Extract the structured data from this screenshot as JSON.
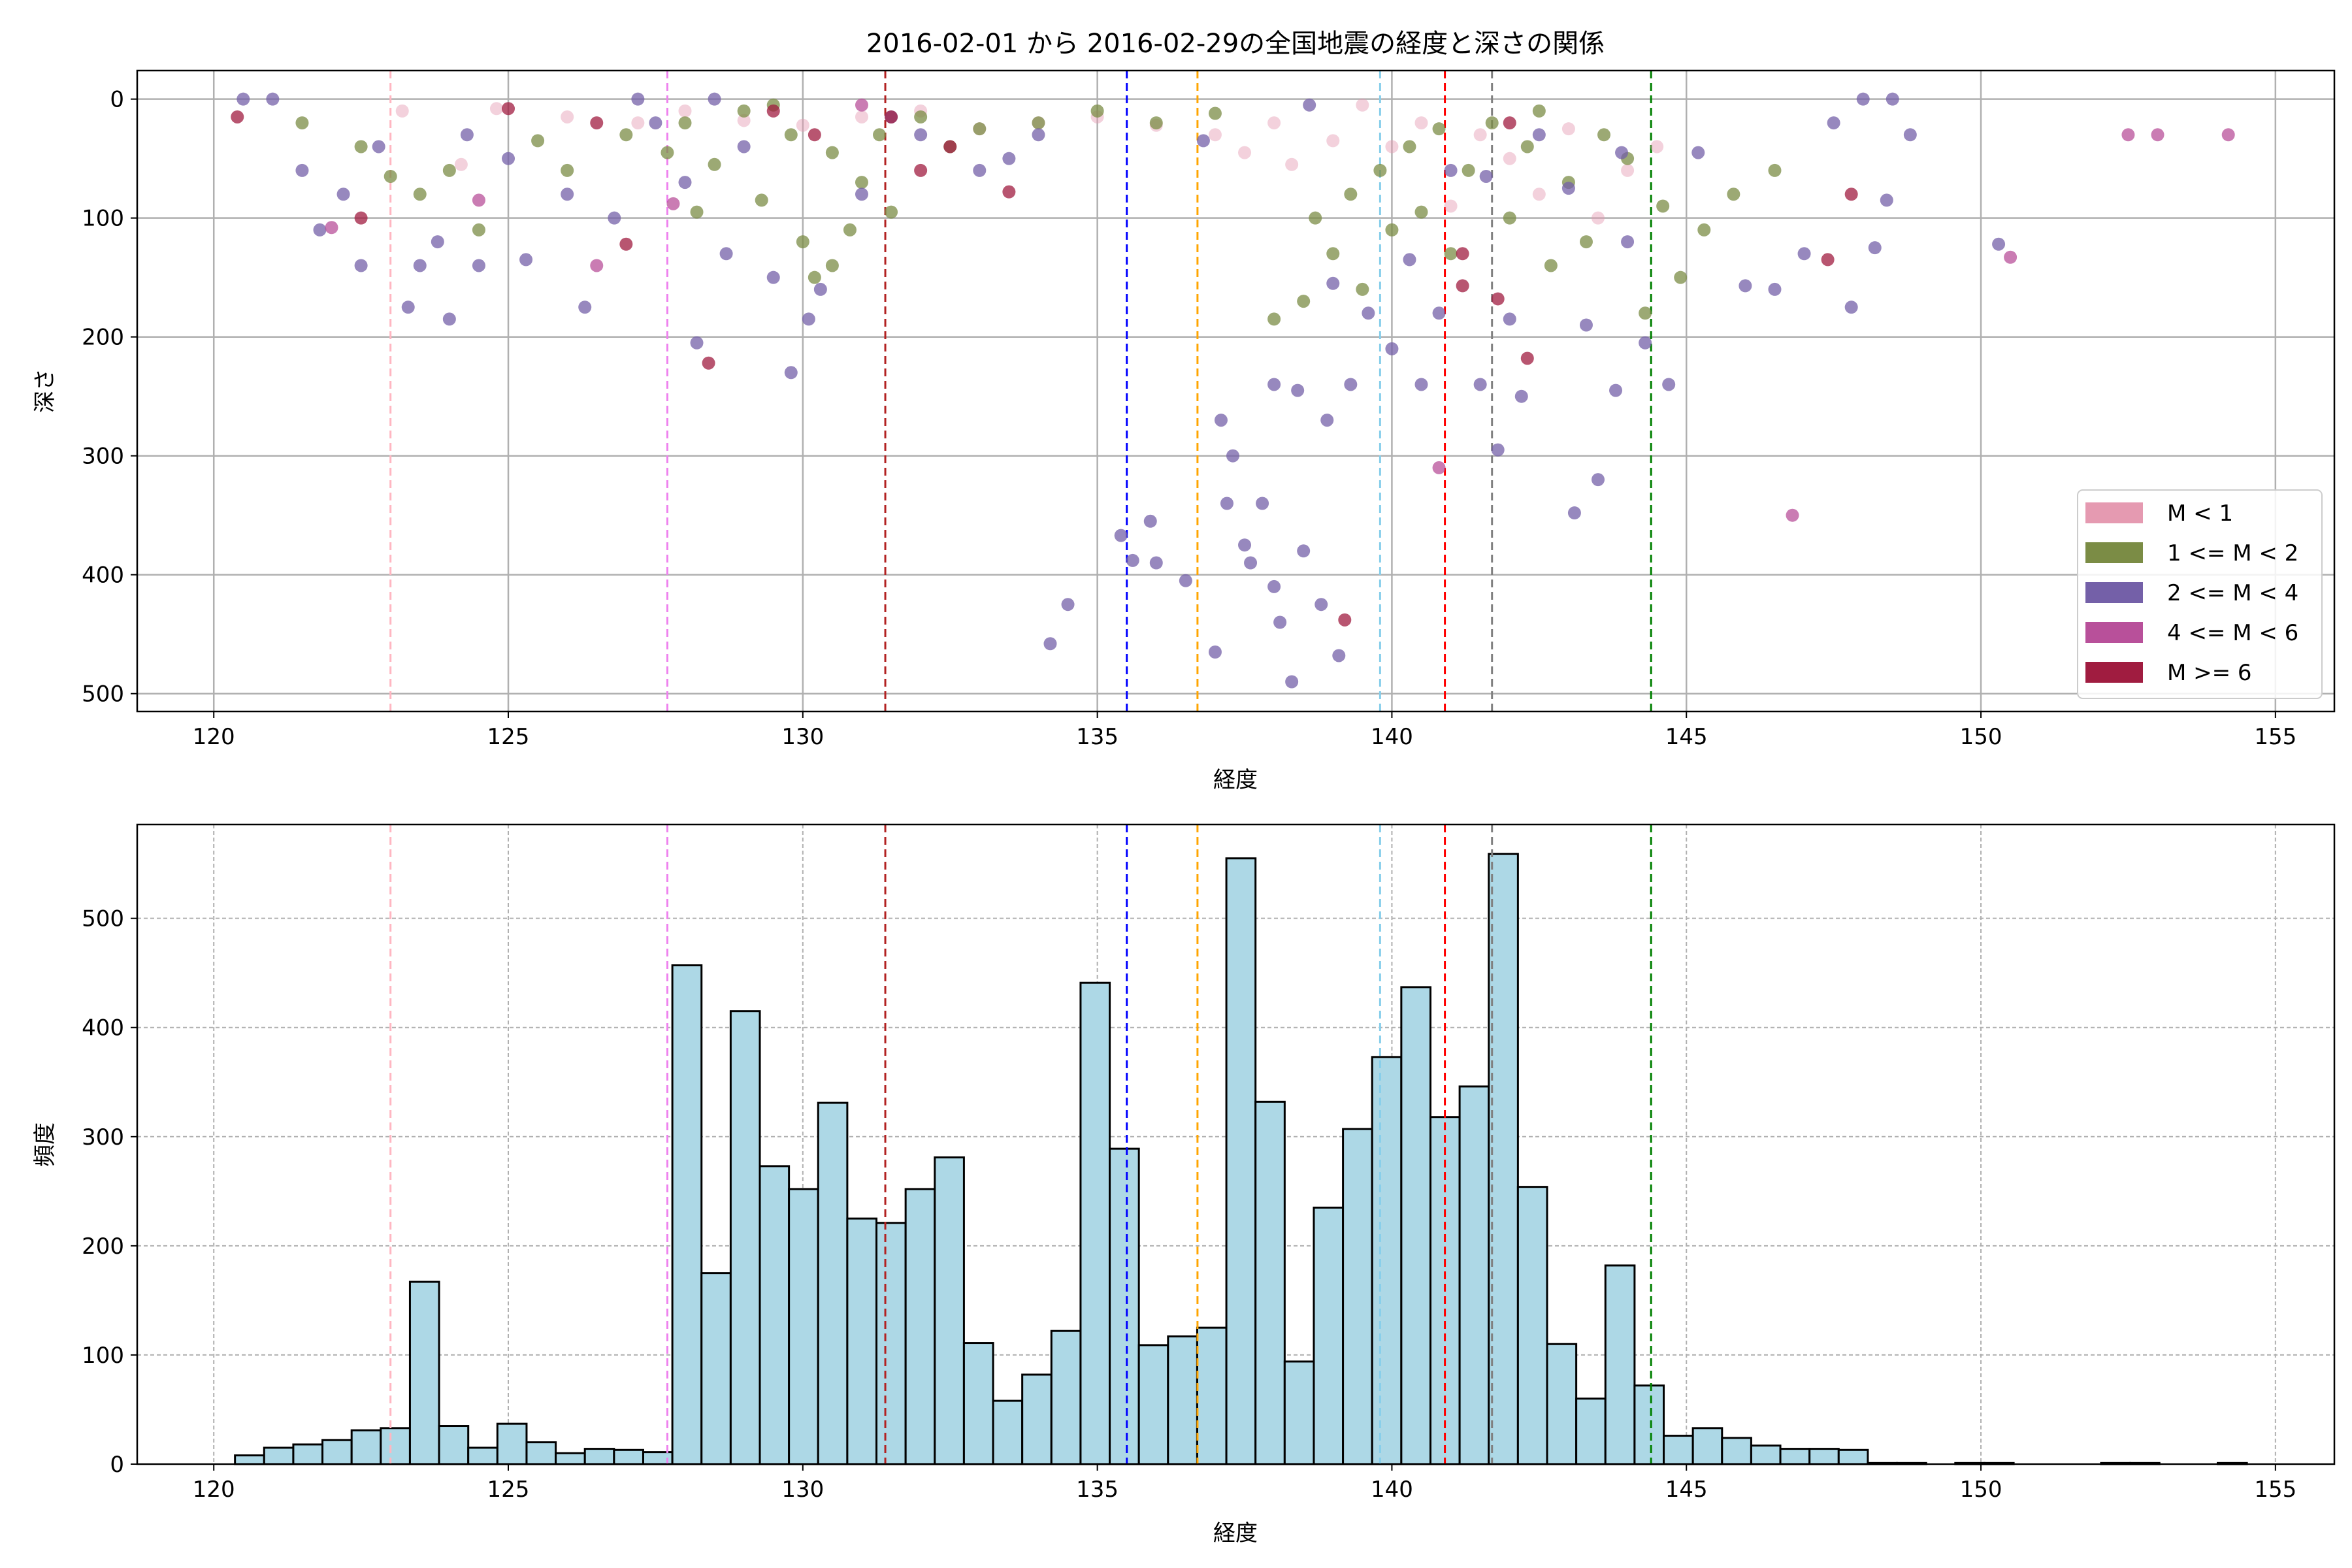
{
  "chart_data": [
    {
      "type": "scatter",
      "title": "2016-02-01 から 2016-02-29の全国地震の経度と深さの関係",
      "xlabel": "経度",
      "ylabel": "深さ",
      "xlim": [
        118.7,
        156.0
      ],
      "ylim": [
        515,
        -24
      ],
      "y_inverted": true,
      "xticks": [
        120,
        125,
        130,
        135,
        140,
        145,
        150,
        155
      ],
      "yticks": [
        0,
        100,
        200,
        300,
        400,
        500
      ],
      "grid": true,
      "legend_position": "lower-right",
      "series": [
        {
          "name": "M < 1",
          "color": "#e59ab1",
          "points": [
            [
              123.2,
              10
            ],
            [
              124.8,
              8
            ],
            [
              126,
              15
            ],
            [
              127.2,
              20
            ],
            [
              128,
              10
            ],
            [
              129,
              18
            ],
            [
              130,
              22
            ],
            [
              131,
              15
            ],
            [
              132,
              10
            ],
            [
              133,
              25
            ],
            [
              134,
              20
            ],
            [
              135,
              15
            ],
            [
              136,
              22
            ],
            [
              137,
              30
            ],
            [
              137.5,
              45
            ],
            [
              138,
              20
            ],
            [
              138.3,
              55
            ],
            [
              139,
              35
            ],
            [
              139.5,
              5
            ],
            [
              140,
              40
            ],
            [
              140.5,
              20
            ],
            [
              141,
              90
            ],
            [
              141.5,
              30
            ],
            [
              142,
              50
            ],
            [
              142.5,
              80
            ],
            [
              143,
              25
            ],
            [
              143.5,
              100
            ],
            [
              144,
              60
            ],
            [
              144.5,
              40
            ],
            [
              124.2,
              55
            ]
          ]
        },
        {
          "name": "1 <= M < 2",
          "color": "#7b8c45",
          "points": [
            [
              121.5,
              20
            ],
            [
              122.5,
              40
            ],
            [
              123,
              65
            ],
            [
              123.5,
              80
            ],
            [
              124,
              60
            ],
            [
              124.5,
              110
            ],
            [
              125.5,
              35
            ],
            [
              126,
              60
            ],
            [
              127,
              30
            ],
            [
              127.7,
              45
            ],
            [
              128,
              20
            ],
            [
              128.5,
              55
            ],
            [
              129,
              10
            ],
            [
              129.3,
              85
            ],
            [
              129.8,
              30
            ],
            [
              130,
              120
            ],
            [
              130.2,
              150
            ],
            [
              130.5,
              140
            ],
            [
              130.8,
              110
            ],
            [
              131,
              70
            ],
            [
              131.5,
              95
            ],
            [
              131.3,
              30
            ],
            [
              132,
              15
            ],
            [
              132.5,
              40
            ],
            [
              133,
              25
            ],
            [
              134,
              20
            ],
            [
              135,
              10
            ],
            [
              136,
              20
            ],
            [
              137,
              12
            ],
            [
              138,
              185
            ],
            [
              138.5,
              170
            ],
            [
              138.7,
              100
            ],
            [
              139,
              130
            ],
            [
              139.3,
              80
            ],
            [
              139.5,
              160
            ],
            [
              139.8,
              60
            ],
            [
              140,
              110
            ],
            [
              140.3,
              40
            ],
            [
              140.5,
              95
            ],
            [
              141,
              130
            ],
            [
              141.3,
              60
            ],
            [
              141.7,
              20
            ],
            [
              142,
              100
            ],
            [
              142.3,
              40
            ],
            [
              142.7,
              140
            ],
            [
              143,
              70
            ],
            [
              143.3,
              120
            ],
            [
              143.6,
              30
            ],
            [
              144,
              50
            ],
            [
              144.3,
              180
            ],
            [
              144.6,
              90
            ],
            [
              144.9,
              150
            ],
            [
              145.3,
              110
            ],
            [
              145.8,
              80
            ],
            [
              146.5,
              60
            ],
            [
              142.5,
              10
            ],
            [
              140.8,
              25
            ],
            [
              129.5,
              5
            ],
            [
              130.5,
              45
            ],
            [
              128.2,
              95
            ]
          ]
        },
        {
          "name": "2 <= M < 4",
          "color": "#7460a8",
          "points": [
            [
              120.5,
              0
            ],
            [
              121,
              0
            ],
            [
              121.5,
              60
            ],
            [
              121.8,
              110
            ],
            [
              122.2,
              80
            ],
            [
              122.5,
              140
            ],
            [
              122.8,
              40
            ],
            [
              123.3,
              175
            ],
            [
              123.5,
              140
            ],
            [
              123.8,
              120
            ],
            [
              124,
              185
            ],
            [
              124.3,
              30
            ],
            [
              124.5,
              140
            ],
            [
              125,
              50
            ],
            [
              125.3,
              135
            ],
            [
              126,
              80
            ],
            [
              126.3,
              175
            ],
            [
              126.8,
              100
            ],
            [
              127.5,
              20
            ],
            [
              128,
              70
            ],
            [
              128.2,
              205
            ],
            [
              128.7,
              130
            ],
            [
              129,
              40
            ],
            [
              129.5,
              150
            ],
            [
              129.8,
              230
            ],
            [
              130.1,
              185
            ],
            [
              130.3,
              160
            ],
            [
              131,
              80
            ],
            [
              132,
              30
            ],
            [
              133,
              60
            ],
            [
              133.5,
              50
            ],
            [
              134,
              30
            ],
            [
              134.2,
              458
            ],
            [
              134.5,
              425
            ],
            [
              135.4,
              367
            ],
            [
              135.6,
              388
            ],
            [
              135.9,
              355
            ],
            [
              136,
              390
            ],
            [
              136.5,
              405
            ],
            [
              137,
              465
            ],
            [
              137.1,
              270
            ],
            [
              137.2,
              340
            ],
            [
              137.3,
              300
            ],
            [
              137.5,
              375
            ],
            [
              137.6,
              390
            ],
            [
              137.8,
              340
            ],
            [
              138,
              240
            ],
            [
              138,
              410
            ],
            [
              138.1,
              440
            ],
            [
              138.3,
              490
            ],
            [
              138.4,
              245
            ],
            [
              138.5,
              380
            ],
            [
              138.8,
              425
            ],
            [
              138.9,
              270
            ],
            [
              139,
              155
            ],
            [
              139.1,
              468
            ],
            [
              139.3,
              240
            ],
            [
              139.6,
              180
            ],
            [
              140,
              210
            ],
            [
              140.3,
              135
            ],
            [
              140.5,
              240
            ],
            [
              140.8,
              180
            ],
            [
              141,
              60
            ],
            [
              141.5,
              240
            ],
            [
              141.8,
              295
            ],
            [
              142,
              185
            ],
            [
              142.2,
              250
            ],
            [
              142.5,
              30
            ],
            [
              143,
              75
            ],
            [
              143.1,
              348
            ],
            [
              143.3,
              190
            ],
            [
              143.5,
              320
            ],
            [
              143.8,
              245
            ],
            [
              144,
              120
            ],
            [
              144.3,
              205
            ],
            [
              144.7,
              240
            ],
            [
              145.2,
              45
            ],
            [
              146,
              157
            ],
            [
              146.5,
              160
            ],
            [
              147,
              130
            ],
            [
              147.5,
              20
            ],
            [
              147.8,
              175
            ],
            [
              148,
              0
            ],
            [
              148.2,
              125
            ],
            [
              148.5,
              0
            ],
            [
              148.8,
              30
            ],
            [
              148.4,
              85
            ],
            [
              150.3,
              122
            ],
            [
              127.2,
              0
            ],
            [
              128.5,
              0
            ],
            [
              131.5,
              15
            ],
            [
              136.8,
              35
            ],
            [
              138.6,
              5
            ],
            [
              141.6,
              65
            ],
            [
              143.9,
              45
            ]
          ]
        },
        {
          "name": "4 <= M < 6",
          "color": "#b8509a",
          "points": [
            [
              152.5,
              30
            ],
            [
              153,
              30
            ],
            [
              154.2,
              30
            ],
            [
              150.5,
              133
            ],
            [
              146.8,
              350
            ],
            [
              140.8,
              310
            ],
            [
              124.5,
              85
            ],
            [
              126.5,
              140
            ],
            [
              127.8,
              88
            ],
            [
              131,
              5
            ],
            [
              122,
              108
            ]
          ]
        },
        {
          "name": "M >= 6",
          "color": "#a01c40",
          "points": [
            [
              120.4,
              15
            ],
            [
              122.5,
              100
            ],
            [
              125,
              8
            ],
            [
              126.5,
              20
            ],
            [
              127,
              122
            ],
            [
              128.4,
              222
            ],
            [
              139.2,
              438
            ],
            [
              141.2,
              157
            ],
            [
              141.8,
              168
            ],
            [
              142.3,
              218
            ],
            [
              147.4,
              135
            ],
            [
              147.8,
              80
            ],
            [
              133.5,
              78
            ],
            [
              132.5,
              40
            ],
            [
              129.5,
              10
            ],
            [
              130.2,
              30
            ],
            [
              131.5,
              15
            ],
            [
              132,
              60
            ],
            [
              141.2,
              130
            ],
            [
              142,
              20
            ]
          ]
        }
      ],
      "reference_lines": [
        {
          "x": 123.0,
          "color": "#ffb6c1"
        },
        {
          "x": 127.7,
          "color": "#ee82ee"
        },
        {
          "x": 131.4,
          "color": "#b22222"
        },
        {
          "x": 135.5,
          "color": "#0000ff"
        },
        {
          "x": 136.7,
          "color": "#ffa500"
        },
        {
          "x": 139.8,
          "color": "#87ceeb"
        },
        {
          "x": 140.9,
          "color": "#ff0000"
        },
        {
          "x": 141.7,
          "color": "#808080"
        },
        {
          "x": 144.4,
          "color": "#008000"
        }
      ]
    },
    {
      "type": "bar",
      "subtype": "histogram",
      "xlabel": "経度",
      "ylabel": "頻度",
      "xlim": [
        118.7,
        156.0
      ],
      "ylim": [
        0,
        586
      ],
      "xticks": [
        120,
        125,
        130,
        135,
        140,
        145,
        150,
        155
      ],
      "yticks": [
        0,
        100,
        200,
        300,
        400,
        500
      ],
      "grid": "dashed",
      "bin_start": 120.36,
      "bin_width": 0.495,
      "bar_color": "#add8e6",
      "edge_color": "#000000",
      "values": [
        8,
        15,
        18,
        22,
        31,
        33,
        167,
        35,
        15,
        37,
        20,
        10,
        14,
        13,
        11,
        457,
        175,
        415,
        273,
        252,
        331,
        225,
        221,
        252,
        281,
        111,
        58,
        82,
        122,
        441,
        289,
        109,
        117,
        125,
        555,
        332,
        94,
        235,
        307,
        373,
        437,
        318,
        346,
        559,
        254,
        110,
        60,
        182,
        72,
        26,
        33,
        24,
        17,
        14,
        14,
        13,
        1,
        1,
        0,
        1,
        1,
        0,
        0,
        0,
        1,
        1,
        0,
        0,
        1,
        0
      ],
      "reference_lines": [
        {
          "x": 123.0,
          "color": "#ffb6c1"
        },
        {
          "x": 127.7,
          "color": "#ee82ee"
        },
        {
          "x": 131.4,
          "color": "#b22222"
        },
        {
          "x": 135.5,
          "color": "#0000ff"
        },
        {
          "x": 136.7,
          "color": "#ffa500"
        },
        {
          "x": 139.8,
          "color": "#87ceeb"
        },
        {
          "x": 140.9,
          "color": "#ff0000"
        },
        {
          "x": 141.7,
          "color": "#808080"
        },
        {
          "x": 144.4,
          "color": "#008000"
        }
      ]
    }
  ]
}
